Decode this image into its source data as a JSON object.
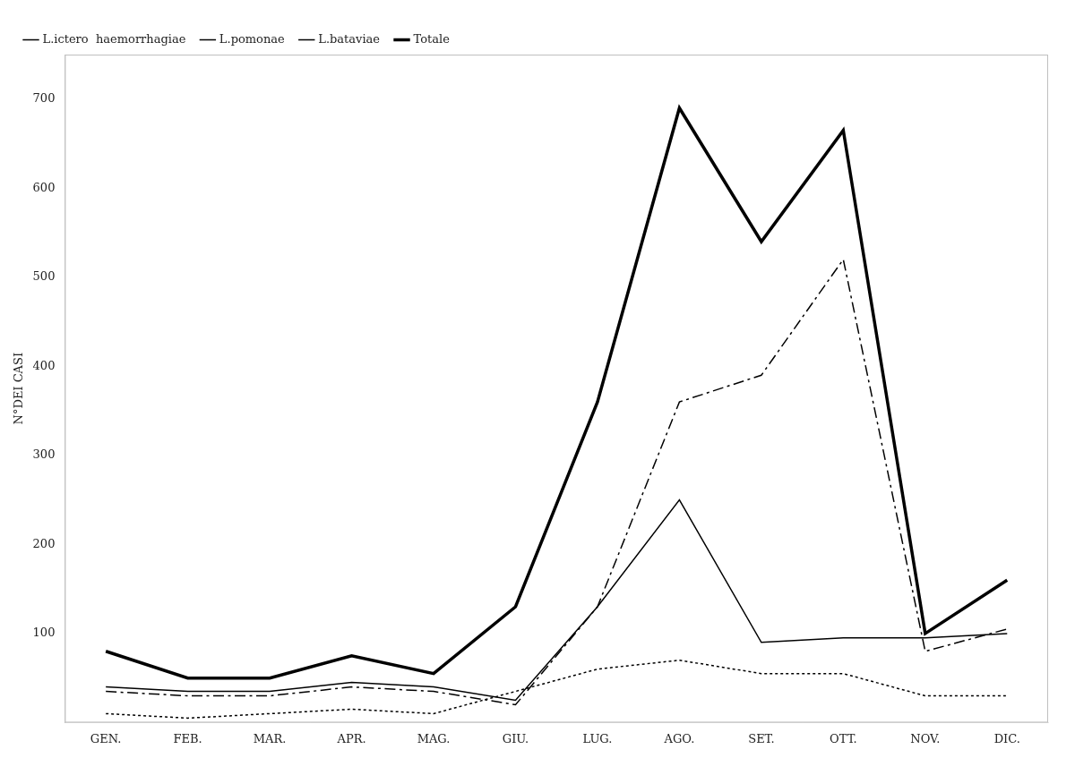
{
  "chart_data": {
    "type": "line",
    "categories": [
      "GEN.",
      "FEB.",
      "MAR.",
      "APR.",
      "MAG.",
      "GIU.",
      "LUG.",
      "AGO.",
      "SET.",
      "OTT.",
      "NOV.",
      "DIC."
    ],
    "series": [
      {
        "name": "L.ictero  haemorrhagiae",
        "color": "#000000",
        "line_style": "dashdot",
        "values": [
          35,
          30,
          30,
          40,
          35,
          20,
          130,
          360,
          390,
          520,
          80,
          105
        ]
      },
      {
        "name": "L.pomonae",
        "color": "#000000",
        "line_style": "dotted",
        "values": [
          10,
          5,
          10,
          15,
          10,
          35,
          60,
          70,
          55,
          55,
          30,
          30
        ]
      },
      {
        "name": "L.bataviae",
        "color": "#000000",
        "line_style": "solid",
        "values": [
          40,
          35,
          35,
          45,
          40,
          25,
          130,
          250,
          90,
          95,
          95,
          100
        ]
      },
      {
        "name": "Totale",
        "color": "#000000",
        "line_style": "solid",
        "values": [
          80,
          50,
          50,
          75,
          55,
          130,
          360,
          690,
          540,
          665,
          100,
          160
        ]
      }
    ],
    "ylabel": "N°DEI CASI",
    "ylim": [
      0,
      750
    ],
    "yticks": [
      100,
      200,
      300,
      400,
      500,
      600,
      700
    ],
    "grid": false,
    "legend": "upper left"
  }
}
